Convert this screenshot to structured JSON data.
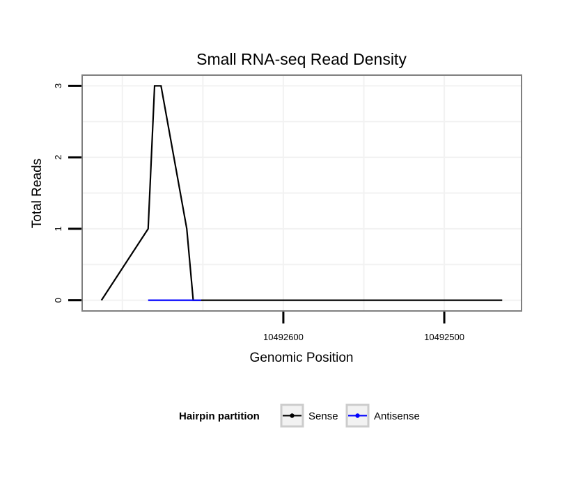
{
  "chart_data": {
    "type": "line",
    "title": "Small RNA-seq Read Density",
    "xlabel": "Genomic Position",
    "ylabel": "Total Reads",
    "x_reversed": true,
    "xlim": [
      10492725,
      10492452
    ],
    "ylim": [
      -0.15,
      3.15
    ],
    "x_ticks": [
      10492600,
      10492500
    ],
    "x_tick_labels": [
      "10492600",
      "10492500"
    ],
    "y_ticks": [
      0,
      1,
      2,
      3
    ],
    "y_tick_labels": [
      "0",
      "1",
      "2",
      "3"
    ],
    "grid": true,
    "legend": {
      "title": "Hairpin partition",
      "position": "bottom",
      "entries": [
        "Sense",
        "Antisense"
      ]
    },
    "series": [
      {
        "name": "Sense",
        "color": "#000000",
        "step": true,
        "x": [
          10492713,
          10492684,
          10492680,
          10492676,
          10492660,
          10492656,
          10492651,
          10492464
        ],
        "y": [
          0,
          1,
          3,
          3,
          1,
          0,
          0,
          0
        ]
      },
      {
        "name": "Antisense",
        "color": "#0000ff",
        "step": true,
        "x": [
          10492684,
          10492651
        ],
        "y": [
          0,
          0
        ]
      }
    ]
  }
}
